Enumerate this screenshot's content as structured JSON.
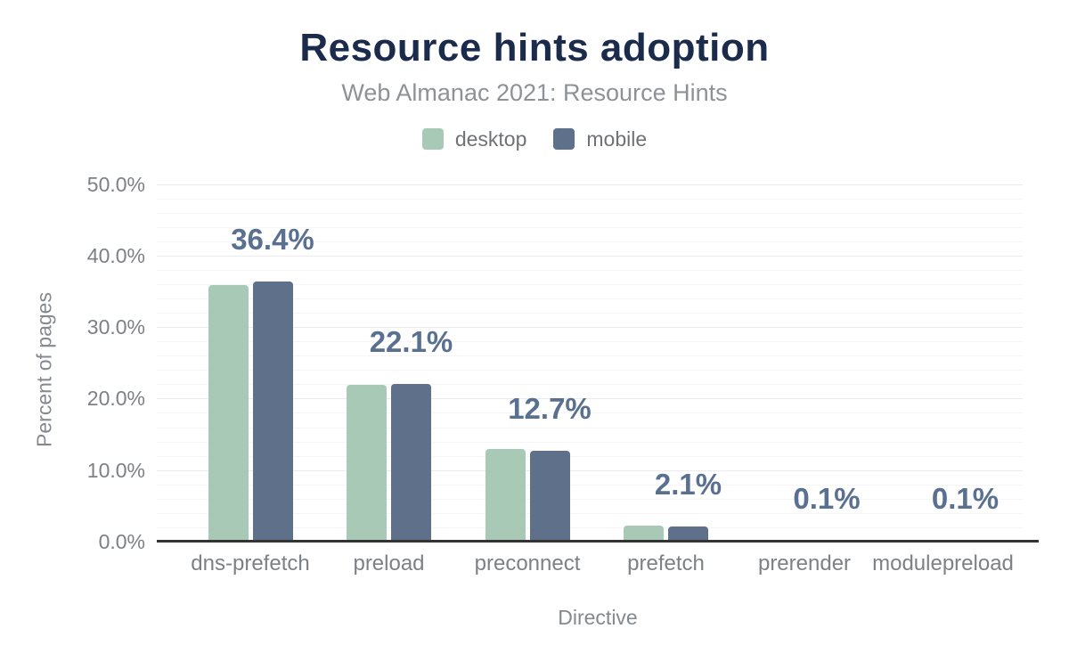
{
  "chart_data": {
    "type": "bar",
    "title": "Resource hints adoption",
    "subtitle": "Web Almanac 2021: Resource Hints",
    "xlabel": "Directive",
    "ylabel": "Percent of pages",
    "categories": [
      "dns-prefetch",
      "preload",
      "preconnect",
      "prefetch",
      "prerender",
      "modulepreload"
    ],
    "series": [
      {
        "name": "desktop",
        "color": "#a9c9b7",
        "values": [
          35.9,
          21.9,
          12.9,
          2.3,
          0.1,
          0.1
        ]
      },
      {
        "name": "mobile",
        "color": "#5f708b",
        "values": [
          36.4,
          22.1,
          12.7,
          2.1,
          0.1,
          0.1
        ]
      }
    ],
    "value_labels": {
      "source_series": "mobile",
      "labels": [
        "36.4%",
        "22.1%",
        "12.7%",
        "2.1%",
        "0.1%",
        "0.1%"
      ]
    },
    "ylim": [
      0,
      50
    ],
    "yticks": [
      {
        "value": 0,
        "label": "0.0%"
      },
      {
        "value": 10,
        "label": "10.0%"
      },
      {
        "value": 20,
        "label": "20.0%"
      },
      {
        "value": 30,
        "label": "30.0%"
      },
      {
        "value": 40,
        "label": "40.0%"
      },
      {
        "value": 50,
        "label": "50.0%"
      }
    ],
    "grid": {
      "minor_step": 2,
      "major_step": 10
    },
    "legend_position": "top"
  },
  "legend": [
    {
      "label": "desktop",
      "color": "#a9c9b7"
    },
    {
      "label": "mobile",
      "color": "#5f708b"
    }
  ],
  "colors": {
    "background": "#ffffff",
    "title_text": "#1b2b4b",
    "subtitle_text": "#8e9196",
    "legend_text": "#6f7275",
    "tick_text": "#7d8185",
    "axis_title_text": "#85898d",
    "value_label_text": "#5a7090",
    "gridline_minor": "#f5f5f5",
    "gridline_major": "#ebebed",
    "baseline": "#333333"
  }
}
